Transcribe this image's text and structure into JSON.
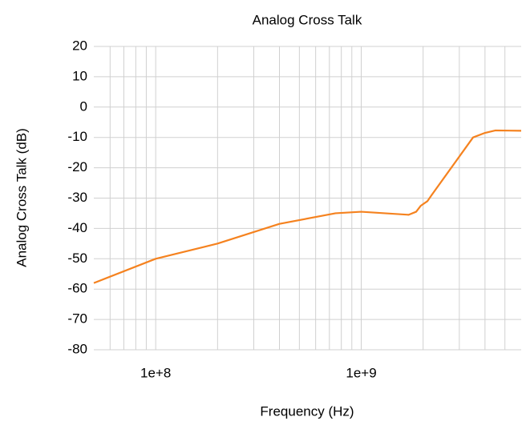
{
  "chart_data": {
    "type": "line",
    "title": "Analog Cross Talk",
    "x_label": "Frequency (Hz)",
    "y_label": "Analog Cross Talk (dB)",
    "x": [
      50000000,
      100000000,
      200000000,
      400000000,
      750000000,
      1000000000,
      1700000000,
      1850000000,
      1950000000,
      2100000000,
      2200000000,
      3500000000,
      4000000000,
      4500000000,
      6000000000
    ],
    "series": [
      {
        "name": "Analog Cross Talk",
        "color": "#f5821f",
        "values": [
          -58,
          -50,
          -45,
          -38.5,
          -35,
          -34.5,
          -35.5,
          -34.5,
          -32.5,
          -31,
          -29,
          -10,
          -8.5,
          -7.7,
          -7.8
        ]
      }
    ],
    "xscale": "log",
    "xlim": [
      50000000,
      6000000000
    ],
    "xticks": [
      {
        "value": 100000000,
        "label": "1e+8"
      },
      {
        "value": 1000000000,
        "label": "1e+9"
      }
    ],
    "xminorticks": [
      60000000,
      70000000,
      80000000,
      90000000,
      200000000,
      300000000,
      400000000,
      500000000,
      600000000,
      700000000,
      800000000,
      900000000,
      2000000000,
      3000000000,
      4000000000,
      5000000000
    ],
    "ylim": [
      -80,
      20
    ],
    "yticks": [
      -80,
      -70,
      -60,
      -50,
      -40,
      -30,
      -20,
      -10,
      0,
      10,
      20
    ],
    "grid": true
  }
}
